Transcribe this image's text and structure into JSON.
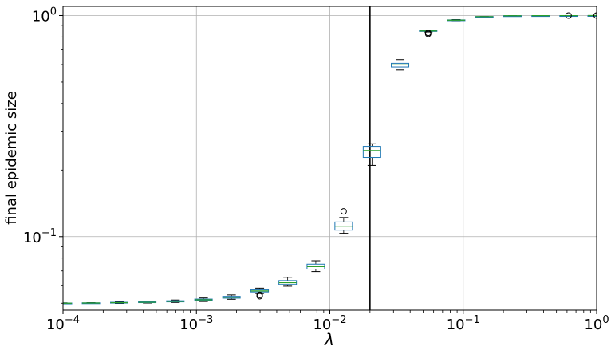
{
  "chart_data": {
    "type": "box",
    "xlabel": "λ",
    "ylabel": "final epidemic size",
    "xscale": "log",
    "yscale": "log",
    "xlim": [
      0.0001,
      1
    ],
    "ylim": [
      0.0465,
      1.1
    ],
    "grid": true,
    "x_ticks": [
      {
        "base": "10",
        "exp": "−4"
      },
      {
        "base": "10",
        "exp": "−3"
      },
      {
        "base": "10",
        "exp": "−2"
      },
      {
        "base": "10",
        "exp": "−1"
      },
      {
        "base": "10",
        "exp": "0"
      }
    ],
    "y_ticks": [
      {
        "value": 0.1,
        "base": "10",
        "exp": "−1"
      },
      {
        "value": 1.0,
        "base": "10",
        "exp": "0"
      }
    ],
    "vline": {
      "x": 0.02,
      "color": "#000000"
    },
    "colors": {
      "box": "#1f77b4",
      "median": "#2ca02c",
      "whisker": "#000000",
      "grid": "#b0b0b0"
    },
    "boxes": [
      {
        "x": 0.0001,
        "whislo": 0.0498,
        "q1": 0.0499,
        "med": 0.05,
        "q3": 0.0501,
        "whishi": 0.0502,
        "fliers": []
      },
      {
        "x": 0.000162,
        "whislo": 0.0499,
        "q1": 0.05,
        "med": 0.0501,
        "q3": 0.0502,
        "whishi": 0.0503,
        "fliers": []
      },
      {
        "x": 0.000264,
        "whislo": 0.0499,
        "q1": 0.0501,
        "med": 0.0503,
        "q3": 0.0505,
        "whishi": 0.0508,
        "fliers": []
      },
      {
        "x": 0.000428,
        "whislo": 0.0501,
        "q1": 0.0503,
        "med": 0.0505,
        "q3": 0.0508,
        "whishi": 0.051,
        "fliers": []
      },
      {
        "x": 0.000695,
        "whislo": 0.0504,
        "q1": 0.0507,
        "med": 0.051,
        "q3": 0.0513,
        "whishi": 0.0517,
        "fliers": []
      },
      {
        "x": 0.00113,
        "whislo": 0.0509,
        "q1": 0.0514,
        "med": 0.0518,
        "q3": 0.0522,
        "whishi": 0.0528,
        "fliers": []
      },
      {
        "x": 0.00183,
        "whislo": 0.0521,
        "q1": 0.0527,
        "med": 0.0532,
        "q3": 0.0537,
        "whishi": 0.0545,
        "fliers": []
      },
      {
        "x": 0.00298,
        "whislo": 0.0553,
        "q1": 0.0562,
        "med": 0.0568,
        "q3": 0.0575,
        "whishi": 0.0585,
        "fliers": [
          0.0545,
          0.0538
        ]
      },
      {
        "x": 0.00483,
        "whislo": 0.0597,
        "q1": 0.0608,
        "med": 0.0619,
        "q3": 0.0633,
        "whishi": 0.0655,
        "fliers": []
      },
      {
        "x": 0.00785,
        "whislo": 0.0695,
        "q1": 0.0713,
        "med": 0.0732,
        "q3": 0.0751,
        "whishi": 0.0778,
        "fliers": []
      },
      {
        "x": 0.0127,
        "whislo": 0.1035,
        "q1": 0.107,
        "med": 0.1115,
        "q3": 0.1165,
        "whishi": 0.122,
        "fliers": [
          0.13
        ]
      },
      {
        "x": 0.0207,
        "whislo": 0.21,
        "q1": 0.228,
        "med": 0.245,
        "q3": 0.256,
        "whishi": 0.263,
        "fliers": []
      },
      {
        "x": 0.0336,
        "whislo": 0.567,
        "q1": 0.585,
        "med": 0.598,
        "q3": 0.608,
        "whishi": 0.632,
        "fliers": []
      },
      {
        "x": 0.0546,
        "whislo": 0.843,
        "q1": 0.848,
        "med": 0.852,
        "q3": 0.856,
        "whishi": 0.86,
        "fliers": [
          0.835,
          0.826
        ]
      },
      {
        "x": 0.0886,
        "whislo": 0.947,
        "q1": 0.95,
        "med": 0.953,
        "q3": 0.956,
        "whishi": 0.959,
        "fliers": []
      },
      {
        "x": 0.144,
        "whislo": 0.987,
        "q1": 0.988,
        "med": 0.989,
        "q3": 0.99,
        "whishi": 0.991,
        "fliers": []
      },
      {
        "x": 0.234,
        "whislo": 0.998,
        "q1": 0.998,
        "med": 0.998,
        "q3": 0.998,
        "whishi": 0.998,
        "fliers": []
      },
      {
        "x": 0.38,
        "whislo": 0.999,
        "q1": 0.999,
        "med": 0.999,
        "q3": 0.999,
        "whishi": 0.999,
        "fliers": []
      },
      {
        "x": 0.616,
        "whislo": 0.9995,
        "q1": 0.9995,
        "med": 0.9995,
        "q3": 0.9995,
        "whishi": 0.9995,
        "fliers": [
          0.9997
        ]
      },
      {
        "x": 1.0,
        "whislo": 1.0,
        "q1": 1.0,
        "med": 1.0,
        "q3": 1.0,
        "whishi": 1.0,
        "fliers": [
          1.0
        ]
      }
    ]
  }
}
